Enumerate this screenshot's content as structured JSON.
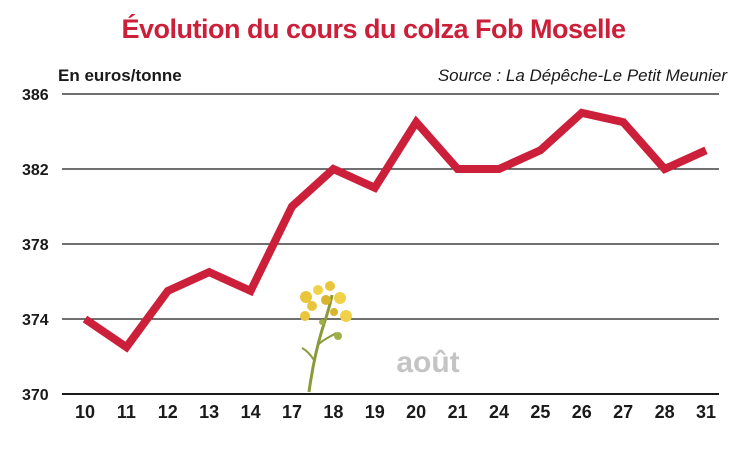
{
  "chart_data": {
    "type": "line",
    "title": "Évolution du cours du colza Fob Moselle",
    "ylabel": "En euros/tonne",
    "source": "Source : La Dépêche-Le Petit Meunier",
    "annotation": "août",
    "categories": [
      "10",
      "11",
      "12",
      "13",
      "14",
      "17",
      "18",
      "19",
      "20",
      "21",
      "24",
      "25",
      "26",
      "27",
      "28",
      "31"
    ],
    "values": [
      374,
      372.5,
      375.5,
      376.5,
      375.5,
      380,
      382,
      381,
      384.5,
      382,
      382,
      383,
      385,
      384.5,
      382,
      383
    ],
    "ylim": [
      370,
      386
    ],
    "yticks": [
      "370",
      "374",
      "378",
      "382",
      "386"
    ],
    "grid": true,
    "colors": {
      "line": "#cc1f3a",
      "title": "#cc1f3a",
      "grid": "#1a1a1a",
      "annotation": "#c4c4c4"
    },
    "decoration": "rapeseed-flower-icon"
  }
}
